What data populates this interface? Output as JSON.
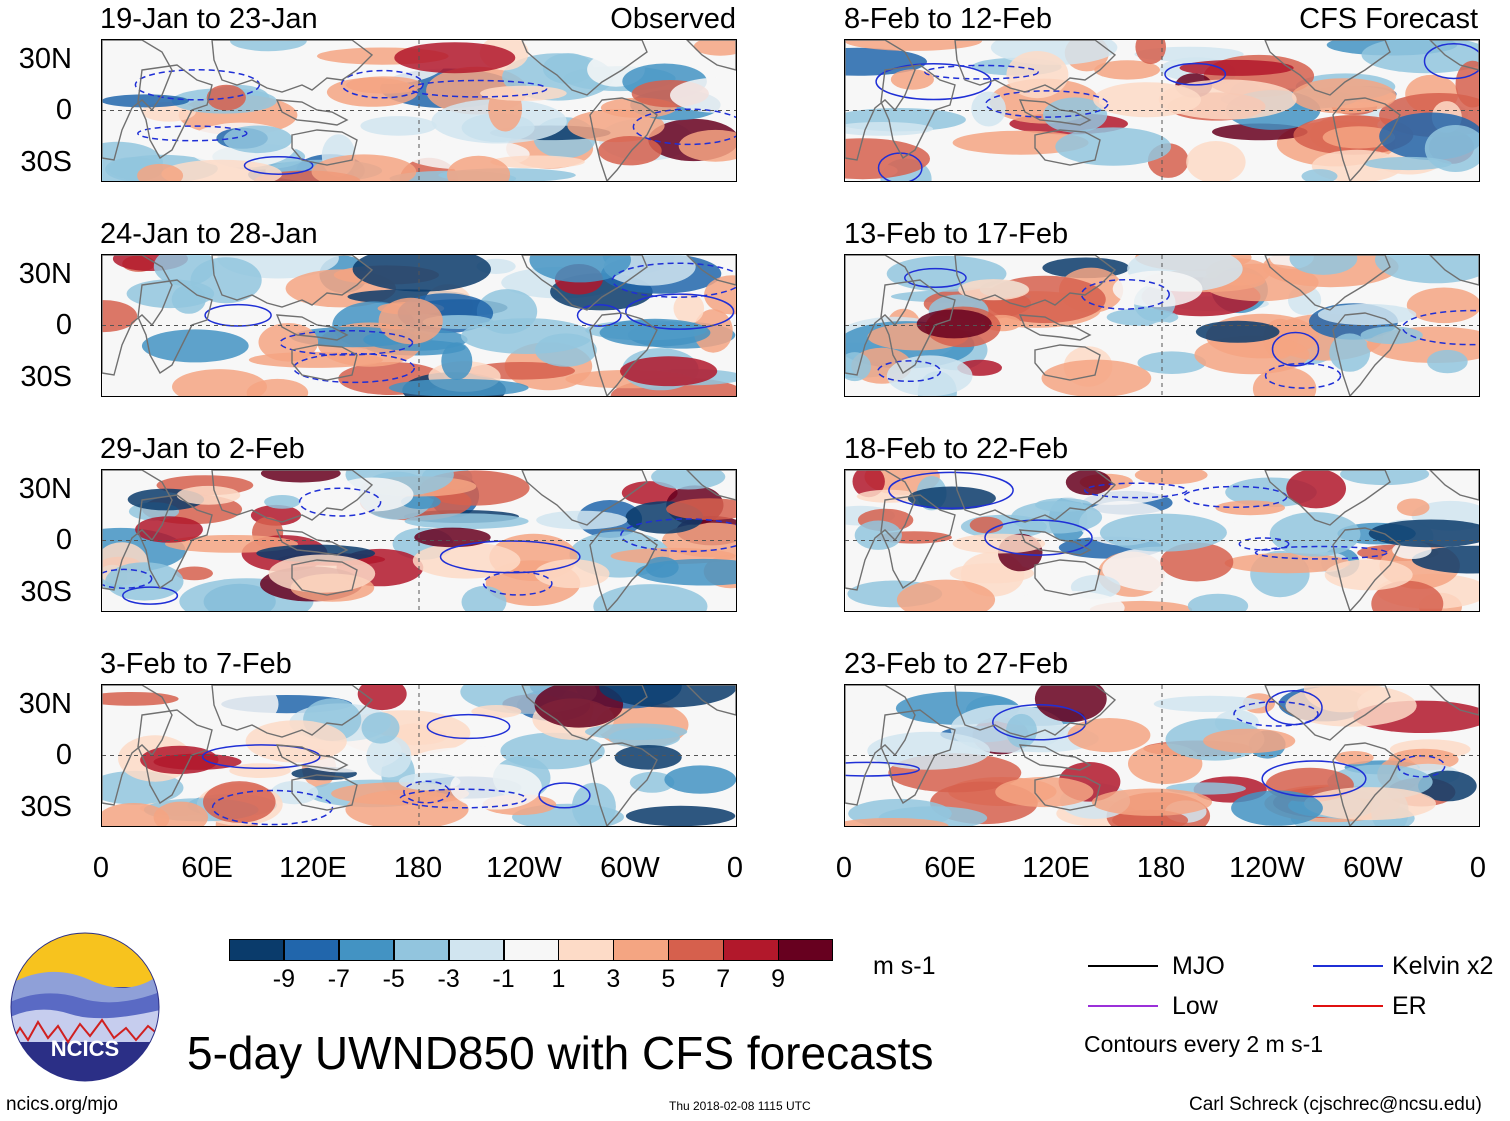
{
  "chart_data": {
    "type": "heatmap",
    "title": "5-day UWND850 with CFS forecasts",
    "units": "m s-1",
    "colorbar": {
      "ticks": [
        "-9",
        "-7",
        "-5",
        "-3",
        "-1",
        "1",
        "3",
        "5",
        "7",
        "9"
      ],
      "colors": [
        "#0a3b6b",
        "#2166ac",
        "#4393c3",
        "#92c5de",
        "#d1e5f0",
        "#f7f7f7",
        "#fddbc7",
        "#f4a582",
        "#d6604d",
        "#b2182b",
        "#67001f"
      ]
    },
    "x_ticks": [
      "0",
      "60E",
      "120E",
      "180",
      "120W",
      "60W",
      "0"
    ],
    "y_ticks": [
      "30N",
      "0",
      "30S"
    ],
    "observed_label": "Observed",
    "forecast_label": "CFS Forecast",
    "panels_observed": [
      {
        "period": "19-Jan to 23-Jan"
      },
      {
        "period": "24-Jan to 28-Jan"
      },
      {
        "period": "29-Jan to 2-Feb"
      },
      {
        "period": "3-Feb to 7-Feb"
      }
    ],
    "panels_forecast": [
      {
        "period": "8-Feb to 12-Feb"
      },
      {
        "period": "13-Feb to 17-Feb"
      },
      {
        "period": "18-Feb to 22-Feb"
      },
      {
        "period": "23-Feb to 27-Feb"
      }
    ],
    "legend": [
      {
        "label": "MJO",
        "color": "#000000"
      },
      {
        "label": "Kelvin x2",
        "color": "#1f2fd6"
      },
      {
        "label": "Low",
        "color": "#9b30d9"
      },
      {
        "label": "ER",
        "color": "#e01010"
      }
    ],
    "contour_note": "Contours every 2 m s-1"
  },
  "logo": {
    "text": "NCICS"
  },
  "footer": {
    "url": "ncics.org/mjo",
    "timestamp": "Thu 2018-02-08 1115 UTC",
    "credit": "Carl Schreck (cjschrec@ncsu.edu)"
  }
}
